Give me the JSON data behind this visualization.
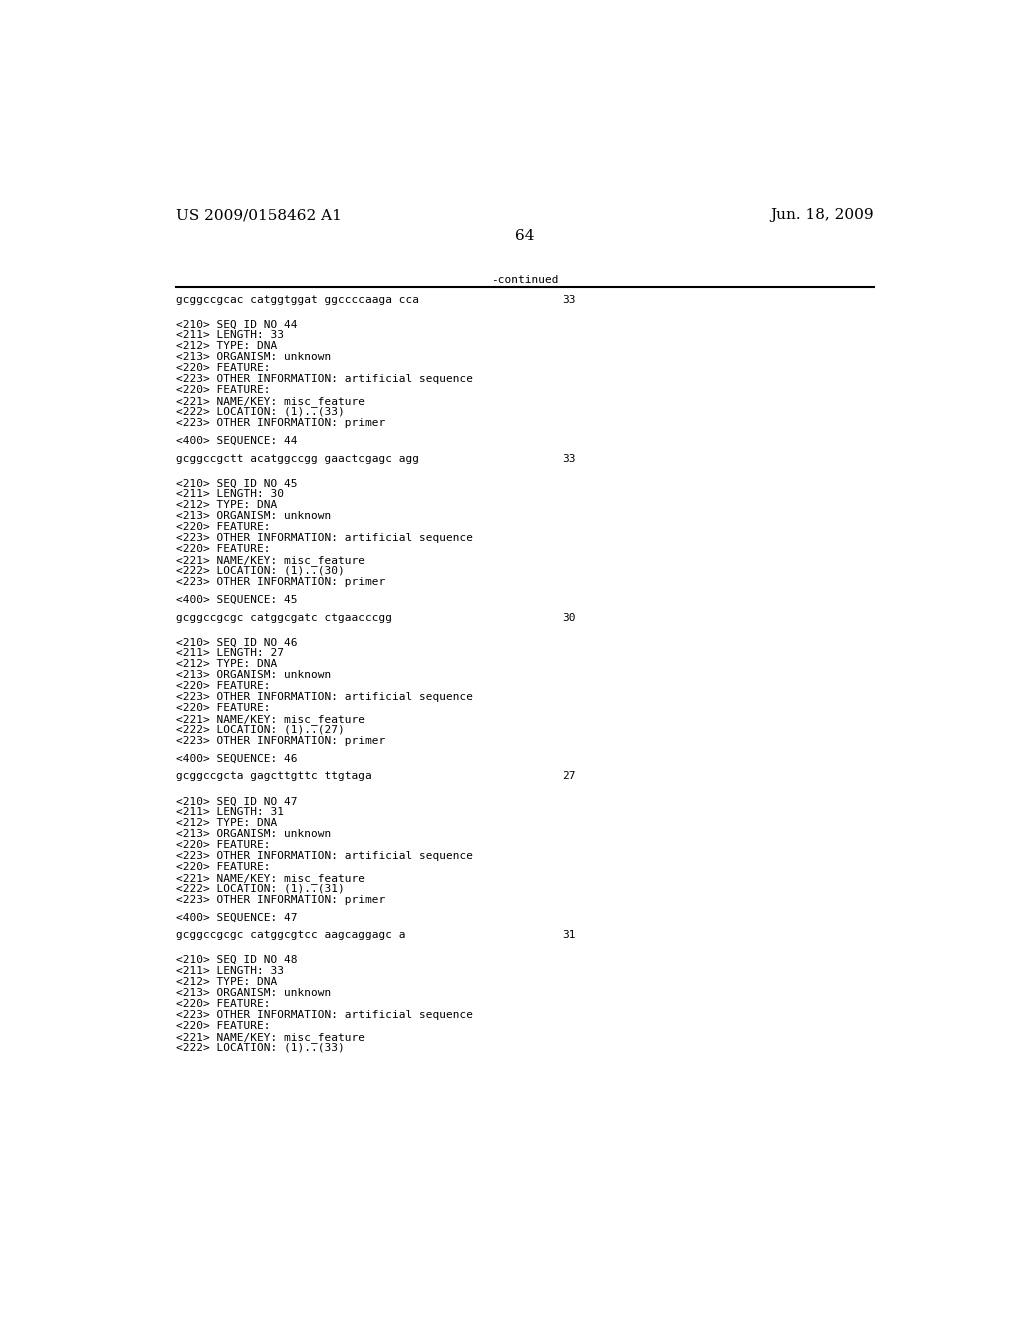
{
  "header_left": "US 2009/0158462 A1",
  "header_right": "Jun. 18, 2009",
  "page_number": "64",
  "continued_label": "-continued",
  "background_color": "#ffffff",
  "text_color": "#000000",
  "font_size_header": 11.0,
  "font_size_body": 8.0,
  "font_size_page": 11.0,
  "lines": [
    {
      "text": "gcggccgcac catggtggat ggccccaaga cca",
      "num": "33",
      "type": "sequence"
    },
    {
      "text": "",
      "type": "blank"
    },
    {
      "text": "",
      "type": "blank"
    },
    {
      "text": "<210> SEQ ID NO 44",
      "type": "body"
    },
    {
      "text": "<211> LENGTH: 33",
      "type": "body"
    },
    {
      "text": "<212> TYPE: DNA",
      "type": "body"
    },
    {
      "text": "<213> ORGANISM: unknown",
      "type": "body"
    },
    {
      "text": "<220> FEATURE:",
      "type": "body"
    },
    {
      "text": "<223> OTHER INFORMATION: artificial sequence",
      "type": "body"
    },
    {
      "text": "<220> FEATURE:",
      "type": "body"
    },
    {
      "text": "<221> NAME/KEY: misc_feature",
      "type": "body"
    },
    {
      "text": "<222> LOCATION: (1)..(33)",
      "type": "body"
    },
    {
      "text": "<223> OTHER INFORMATION: primer",
      "type": "body"
    },
    {
      "text": "",
      "type": "blank"
    },
    {
      "text": "<400> SEQUENCE: 44",
      "type": "body"
    },
    {
      "text": "",
      "type": "blank"
    },
    {
      "text": "gcggccgctt acatggccgg gaactcgagc agg",
      "num": "33",
      "type": "sequence"
    },
    {
      "text": "",
      "type": "blank"
    },
    {
      "text": "",
      "type": "blank"
    },
    {
      "text": "<210> SEQ ID NO 45",
      "type": "body"
    },
    {
      "text": "<211> LENGTH: 30",
      "type": "body"
    },
    {
      "text": "<212> TYPE: DNA",
      "type": "body"
    },
    {
      "text": "<213> ORGANISM: unknown",
      "type": "body"
    },
    {
      "text": "<220> FEATURE:",
      "type": "body"
    },
    {
      "text": "<223> OTHER INFORMATION: artificial sequence",
      "type": "body"
    },
    {
      "text": "<220> FEATURE:",
      "type": "body"
    },
    {
      "text": "<221> NAME/KEY: misc_feature",
      "type": "body"
    },
    {
      "text": "<222> LOCATION: (1)..(30)",
      "type": "body"
    },
    {
      "text": "<223> OTHER INFORMATION: primer",
      "type": "body"
    },
    {
      "text": "",
      "type": "blank"
    },
    {
      "text": "<400> SEQUENCE: 45",
      "type": "body"
    },
    {
      "text": "",
      "type": "blank"
    },
    {
      "text": "gcggccgcgc catggcgatc ctgaacccgg",
      "num": "30",
      "type": "sequence"
    },
    {
      "text": "",
      "type": "blank"
    },
    {
      "text": "",
      "type": "blank"
    },
    {
      "text": "<210> SEQ ID NO 46",
      "type": "body"
    },
    {
      "text": "<211> LENGTH: 27",
      "type": "body"
    },
    {
      "text": "<212> TYPE: DNA",
      "type": "body"
    },
    {
      "text": "<213> ORGANISM: unknown",
      "type": "body"
    },
    {
      "text": "<220> FEATURE:",
      "type": "body"
    },
    {
      "text": "<223> OTHER INFORMATION: artificial sequence",
      "type": "body"
    },
    {
      "text": "<220> FEATURE:",
      "type": "body"
    },
    {
      "text": "<221> NAME/KEY: misc_feature",
      "type": "body"
    },
    {
      "text": "<222> LOCATION: (1)..(27)",
      "type": "body"
    },
    {
      "text": "<223> OTHER INFORMATION: primer",
      "type": "body"
    },
    {
      "text": "",
      "type": "blank"
    },
    {
      "text": "<400> SEQUENCE: 46",
      "type": "body"
    },
    {
      "text": "",
      "type": "blank"
    },
    {
      "text": "gcggccgcta gagcttgttc ttgtaga",
      "num": "27",
      "type": "sequence"
    },
    {
      "text": "",
      "type": "blank"
    },
    {
      "text": "",
      "type": "blank"
    },
    {
      "text": "<210> SEQ ID NO 47",
      "type": "body"
    },
    {
      "text": "<211> LENGTH: 31",
      "type": "body"
    },
    {
      "text": "<212> TYPE: DNA",
      "type": "body"
    },
    {
      "text": "<213> ORGANISM: unknown",
      "type": "body"
    },
    {
      "text": "<220> FEATURE:",
      "type": "body"
    },
    {
      "text": "<223> OTHER INFORMATION: artificial sequence",
      "type": "body"
    },
    {
      "text": "<220> FEATURE:",
      "type": "body"
    },
    {
      "text": "<221> NAME/KEY: misc_feature",
      "type": "body"
    },
    {
      "text": "<222> LOCATION: (1)..(31)",
      "type": "body"
    },
    {
      "text": "<223> OTHER INFORMATION: primer",
      "type": "body"
    },
    {
      "text": "",
      "type": "blank"
    },
    {
      "text": "<400> SEQUENCE: 47",
      "type": "body"
    },
    {
      "text": "",
      "type": "blank"
    },
    {
      "text": "gcggccgcgc catggcgtcc aagcaggagc a",
      "num": "31",
      "type": "sequence"
    },
    {
      "text": "",
      "type": "blank"
    },
    {
      "text": "",
      "type": "blank"
    },
    {
      "text": "<210> SEQ ID NO 48",
      "type": "body"
    },
    {
      "text": "<211> LENGTH: 33",
      "type": "body"
    },
    {
      "text": "<212> TYPE: DNA",
      "type": "body"
    },
    {
      "text": "<213> ORGANISM: unknown",
      "type": "body"
    },
    {
      "text": "<220> FEATURE:",
      "type": "body"
    },
    {
      "text": "<223> OTHER INFORMATION: artificial sequence",
      "type": "body"
    },
    {
      "text": "<220> FEATURE:",
      "type": "body"
    },
    {
      "text": "<221> NAME/KEY: misc_feature",
      "type": "body"
    },
    {
      "text": "<222> LOCATION: (1)..(33)",
      "type": "body"
    }
  ]
}
